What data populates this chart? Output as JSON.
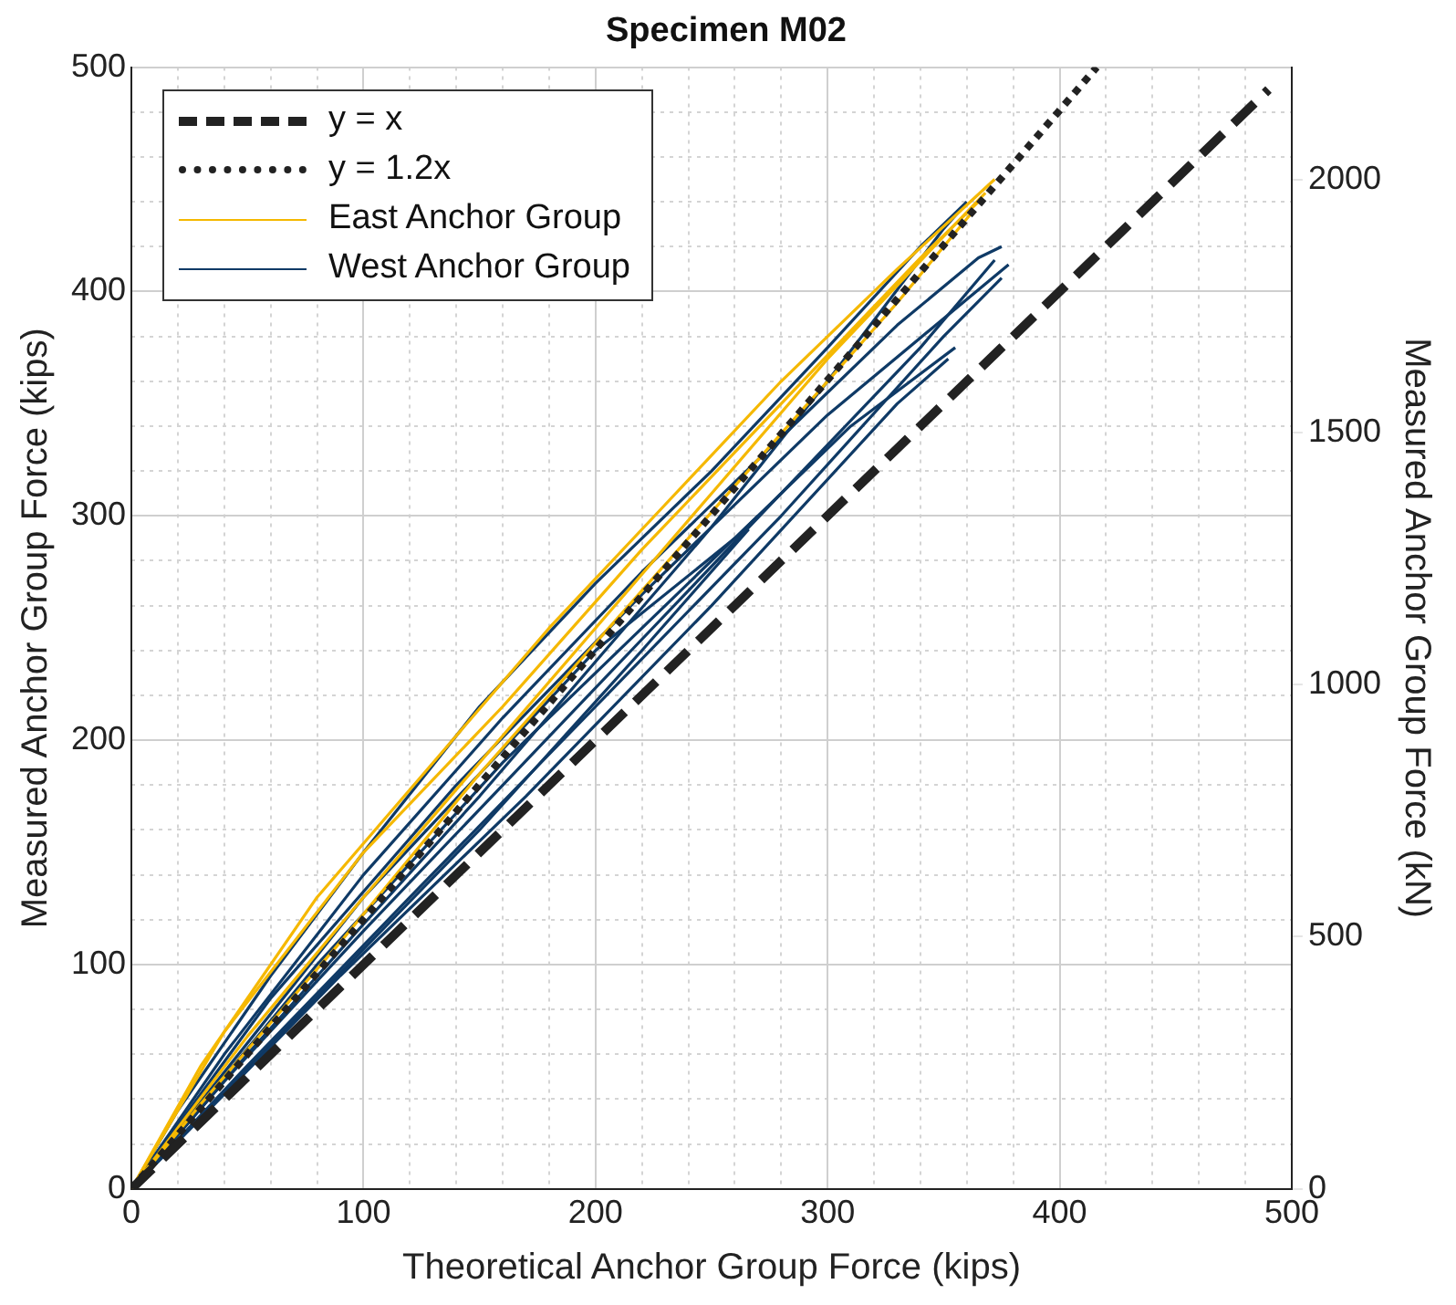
{
  "chart_data": {
    "type": "line",
    "title": "Specimen M02",
    "xlabel": "Theoretical Anchor Group Force (kips)",
    "ylabel": "Measured Anchor Group Force (kips)",
    "y2label": "Measured Anchor Group Force (kN)",
    "xlim": [
      0,
      500
    ],
    "xticks": [
      0,
      100,
      200,
      300,
      400,
      500
    ],
    "ylim": [
      0,
      500
    ],
    "yticks": [
      0,
      100,
      200,
      300,
      400,
      500
    ],
    "y2lim": [
      0,
      2224
    ],
    "y2ticks": [
      0,
      500,
      1000,
      1500,
      2000
    ],
    "grid": true,
    "legend": "top left",
    "marker": "none",
    "series": [
      {
        "name": "y = x",
        "color": "#222222",
        "line_style": "dashed",
        "x": [
          0,
          490
        ],
        "values": [
          0,
          490
        ]
      },
      {
        "name": "y = 1.2x",
        "color": "#222222",
        "line_style": "dotted",
        "x": [
          0,
          416
        ],
        "values": [
          0,
          500
        ]
      },
      {
        "name": "East Anchor Group",
        "color": "#f5b800",
        "line_style": "solid",
        "x": [
          0,
          30,
          80,
          130,
          180,
          230,
          280,
          330,
          372
        ],
        "values": [
          0,
          55,
          130,
          190,
          250,
          305,
          360,
          410,
          450
        ]
      },
      {
        "color": "#f5b800",
        "line_style": "solid",
        "x": [
          0,
          50,
          100,
          150,
          200,
          250,
          300,
          355,
          368
        ],
        "values": [
          0,
          68,
          130,
          190,
          250,
          310,
          370,
          430,
          444
        ]
      },
      {
        "color": "#f5b800",
        "line_style": "solid",
        "x": [
          0,
          40,
          100,
          160,
          220,
          280,
          340,
          365
        ],
        "values": [
          0,
          70,
          150,
          215,
          285,
          350,
          415,
          440
        ]
      },
      {
        "color": "#f5b800",
        "line_style": "solid",
        "x": [
          0,
          30,
          90,
          150,
          210,
          270,
          330,
          362
        ],
        "values": [
          0,
          38,
          110,
          185,
          255,
          325,
          395,
          435
        ]
      },
      {
        "name": "West Anchor Group",
        "color": "#0f3a66",
        "line_style": "solid",
        "x": [
          0,
          20,
          60,
          100,
          150,
          200,
          250,
          300,
          340,
          360
        ],
        "values": [
          0,
          35,
          95,
          150,
          215,
          270,
          320,
          375,
          420,
          440
        ]
      },
      {
        "color": "#0f3a66",
        "line_style": "solid",
        "x": [
          0,
          50,
          100,
          150,
          200,
          250,
          300,
          350,
          356
        ],
        "values": [
          0,
          60,
          118,
          175,
          235,
          295,
          360,
          428,
          435
        ]
      },
      {
        "color": "#0f3a66",
        "line_style": "solid",
        "x": [
          0,
          40,
          100,
          160,
          220,
          280,
          330,
          365,
          375
        ],
        "values": [
          0,
          60,
          140,
          210,
          275,
          335,
          385,
          415,
          420
        ]
      },
      {
        "color": "#0f3a66",
        "line_style": "solid",
        "x": [
          0,
          40,
          100,
          160,
          220,
          280,
          340,
          372
        ],
        "values": [
          0,
          48,
          115,
          180,
          245,
          310,
          375,
          414
        ]
      },
      {
        "color": "#0f3a66",
        "line_style": "solid",
        "x": [
          0,
          60,
          140,
          220,
          300,
          378
        ],
        "values": [
          0,
          85,
          180,
          265,
          345,
          412
        ]
      },
      {
        "color": "#0f3a66",
        "line_style": "solid",
        "x": [
          0,
          50,
          120,
          200,
          280,
          350,
          375
        ],
        "values": [
          0,
          55,
          130,
          215,
          300,
          380,
          406
        ]
      },
      {
        "color": "#0f3a66",
        "line_style": "solid",
        "x": [
          0,
          80,
          160,
          240,
          310,
          355
        ],
        "values": [
          0,
          100,
          190,
          270,
          340,
          375
        ]
      },
      {
        "color": "#0f3a66",
        "line_style": "solid",
        "x": [
          0,
          90,
          170,
          250,
          330,
          352
        ],
        "values": [
          0,
          95,
          175,
          260,
          350,
          370
        ]
      },
      {
        "color": "#0f3a66",
        "line_style": "solid",
        "x": [
          0,
          100,
          200,
          260,
          270
        ],
        "values": [
          0,
          130,
          240,
          290,
          300
        ]
      },
      {
        "color": "#0f3a66",
        "line_style": "solid",
        "x": [
          0,
          70,
          150,
          220,
          266
        ],
        "values": [
          0,
          75,
          160,
          240,
          294
        ]
      }
    ]
  }
}
